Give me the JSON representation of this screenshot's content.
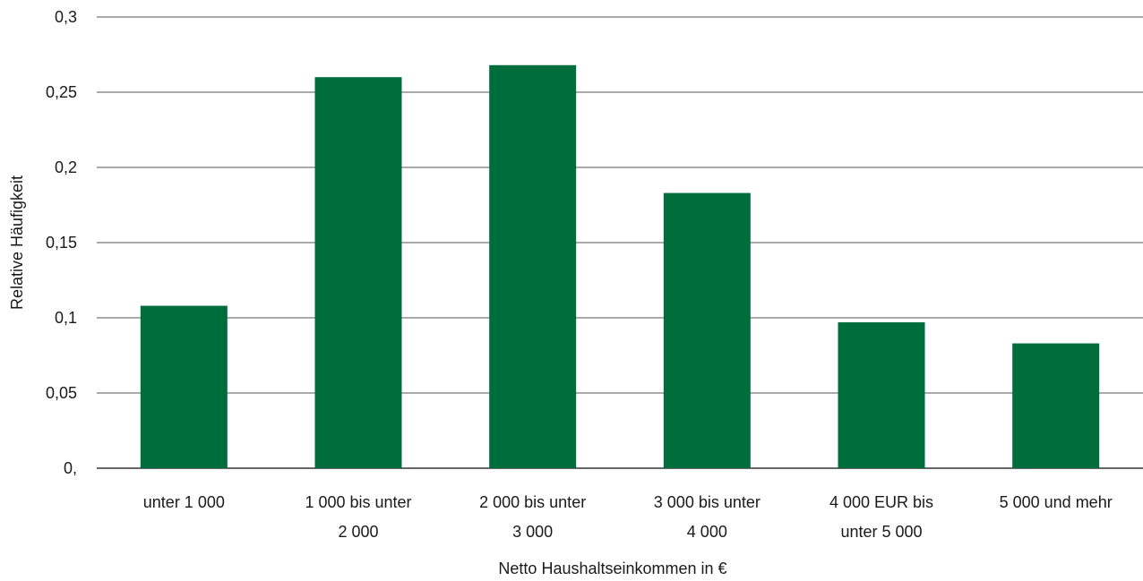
{
  "chart_data": {
    "type": "bar",
    "title": "",
    "xlabel": "Netto Haushaltseinkommen in €",
    "ylabel": "Relative Häufigkeit",
    "categories": [
      [
        "unter 1 000"
      ],
      [
        "1 000 bis unter",
        "2 000"
      ],
      [
        "2 000 bis unter",
        "3 000"
      ],
      [
        "3 000 bis unter",
        "4 000"
      ],
      [
        "4 000 EUR bis",
        "unter 5 000"
      ],
      [
        "5 000 und mehr"
      ]
    ],
    "values": [
      0.108,
      0.26,
      0.268,
      0.183,
      0.097,
      0.083
    ],
    "ylim": [
      0,
      0.3
    ],
    "yticks": [
      0,
      0.05,
      0.1,
      0.15,
      0.2,
      0.25,
      0.3
    ],
    "ytick_labels": [
      "0,",
      "0,05",
      "0,1",
      "0,15",
      "0,2",
      "0,25",
      "0,3"
    ],
    "grid": true,
    "legend": "none",
    "bar_color": "#006e3c"
  }
}
